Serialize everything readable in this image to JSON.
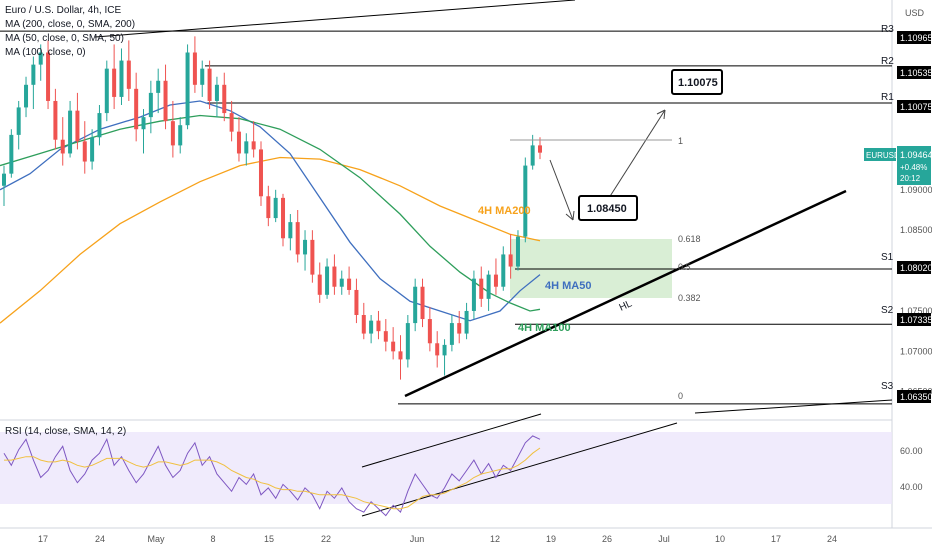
{
  "symbol_title": "Euro / U.S. Dollar, 4h, ICE",
  "indicators": [
    "MA (200, close, 0, SMA, 200)",
    "MA (50, close, 0, SMA, 50)",
    "MA (100, close, 0)"
  ],
  "rsi_legend": "RSI (14, close, SMA, 14, 2)",
  "currency_label": "USD",
  "ticker_badge": "EURUSD",
  "last_price": "1.09464",
  "change_pct": "+0.48%",
  "countdown": "20:12",
  "colors": {
    "up": "#26a69a",
    "down": "#ef5350",
    "ma200": "#f7a21b",
    "ma50": "#3f6fbf",
    "ma100": "#2e9e5b",
    "fib_box": "#cfeacb",
    "rsi_band": "#ece6fb",
    "rsi_line": "#7e57c2",
    "rsi_ma": "#f0c040",
    "price_badge": "#26a69a"
  },
  "chart_data": {
    "type": "candlestick",
    "title": "Euro / U.S. Dollar, 4h, ICE",
    "y_axis": {
      "unit": "USD",
      "range": [
        1.0615,
        1.1135
      ],
      "ticks": [
        "1.09000",
        "1.08500",
        "1.07500",
        "1.07000",
        "1.06500"
      ]
    },
    "x_axis": {
      "ticks": [
        "17",
        "24",
        "May",
        "8",
        "15",
        "22",
        "Jun",
        "12",
        "19",
        "26",
        "Jul",
        "10",
        "17",
        "24"
      ]
    },
    "levels": [
      {
        "name": "R3",
        "value": 1.10965
      },
      {
        "name": "R2",
        "value": 1.10535
      },
      {
        "name": "R1",
        "value": 1.10075
      },
      {
        "name": "S1",
        "value": 1.0802
      },
      {
        "name": "S2",
        "value": 1.07335
      },
      {
        "name": "S3",
        "value": 1.0635
      }
    ],
    "level_labels": [
      "1.10965",
      "1.10535",
      "1.10075",
      "1.08020",
      "1.07335",
      "1.06350"
    ],
    "fibonacci": [
      {
        "label": "1",
        "value": 1.0965
      },
      {
        "label": "0.618",
        "value": 1.0835
      },
      {
        "label": "0.5",
        "value": 1.0798
      },
      {
        "label": "0.382",
        "value": 1.0758
      },
      {
        "label": "0",
        "value": 1.0635
      }
    ],
    "targets": [
      "1.10075",
      "1.08450"
    ],
    "annotations": [
      "4H MA200",
      "4H MA50",
      "4H MA100",
      "HL"
    ],
    "series": [
      {
        "name": "4H MA200",
        "points": [
          [
            0,
            1.0735
          ],
          [
            40,
            1.0775
          ],
          [
            80,
            1.082
          ],
          [
            120,
            1.0858
          ],
          [
            160,
            1.0885
          ],
          [
            200,
            1.091
          ],
          [
            240,
            1.093
          ],
          [
            280,
            1.094
          ],
          [
            320,
            1.0938
          ],
          [
            360,
            1.0925
          ],
          [
            400,
            1.0905
          ],
          [
            440,
            1.088
          ],
          [
            480,
            1.086
          ],
          [
            510,
            1.0845
          ],
          [
            540,
            1.0837
          ]
        ]
      },
      {
        "name": "4H MA50",
        "points": [
          [
            0,
            1.09
          ],
          [
            30,
            1.092
          ],
          [
            60,
            1.095
          ],
          [
            100,
            1.0975
          ],
          [
            140,
            1.099
          ],
          [
            170,
            1.1005
          ],
          [
            200,
            1.101
          ],
          [
            230,
            1.0998
          ],
          [
            260,
            1.0978
          ],
          [
            290,
            1.0945
          ],
          [
            320,
            1.089
          ],
          [
            350,
            1.0835
          ],
          [
            380,
            1.079
          ],
          [
            410,
            1.0762
          ],
          [
            440,
            1.075
          ],
          [
            470,
            1.0738
          ],
          [
            500,
            1.075
          ],
          [
            520,
            1.0775
          ],
          [
            540,
            1.0795
          ]
        ]
      },
      {
        "name": "4H MA100",
        "points": [
          [
            0,
            1.093
          ],
          [
            40,
            1.0945
          ],
          [
            80,
            1.096
          ],
          [
            120,
            1.0975
          ],
          [
            160,
            1.0985
          ],
          [
            200,
            1.0992
          ],
          [
            240,
            1.0988
          ],
          [
            280,
            1.0975
          ],
          [
            320,
            1.095
          ],
          [
            360,
            1.0915
          ],
          [
            400,
            1.087
          ],
          [
            430,
            1.083
          ],
          [
            460,
            1.0798
          ],
          [
            490,
            1.0772
          ],
          [
            510,
            1.076
          ],
          [
            530,
            1.075
          ],
          [
            540,
            1.0752
          ]
        ]
      }
    ],
    "ohlc": [
      [
        1.0905,
        1.093,
        1.088,
        1.092
      ],
      [
        1.092,
        1.0975,
        1.0915,
        1.0968
      ],
      [
        1.0968,
        1.101,
        1.095,
        1.1002
      ],
      [
        1.1002,
        1.104,
        1.099,
        1.103
      ],
      [
        1.103,
        1.1065,
        1.1,
        1.1055
      ],
      [
        1.1055,
        1.108,
        1.1035,
        1.107
      ],
      [
        1.107,
        1.1085,
        1.1,
        1.101
      ],
      [
        1.101,
        1.1025,
        1.095,
        1.0962
      ],
      [
        1.0962,
        1.099,
        1.093,
        1.0945
      ],
      [
        1.0945,
        1.101,
        1.094,
        1.0998
      ],
      [
        1.0998,
        1.102,
        1.095,
        1.096
      ],
      [
        1.096,
        1.0985,
        1.092,
        1.0935
      ],
      [
        1.0935,
        1.0975,
        1.0925,
        1.0965
      ],
      [
        1.0965,
        1.1005,
        1.0955,
        1.0995
      ],
      [
        1.0995,
        1.106,
        1.0985,
        1.105
      ],
      [
        1.105,
        1.108,
        1.1,
        1.1015
      ],
      [
        1.1015,
        1.1075,
        1.1005,
        1.106
      ],
      [
        1.106,
        1.1085,
        1.101,
        1.1025
      ],
      [
        1.1025,
        1.1045,
        1.096,
        1.0975
      ],
      [
        1.0975,
        1.1,
        1.0945,
        1.099
      ],
      [
        1.099,
        1.1035,
        1.097,
        1.102
      ],
      [
        1.102,
        1.105,
        1.0995,
        1.1035
      ],
      [
        1.1035,
        1.1055,
        1.0975,
        1.0985
      ],
      [
        1.0985,
        1.101,
        1.094,
        1.0955
      ],
      [
        1.0955,
        1.099,
        1.0945,
        1.098
      ],
      [
        1.098,
        1.108,
        1.0975,
        1.107
      ],
      [
        1.107,
        1.109,
        1.102,
        1.103
      ],
      [
        1.103,
        1.106,
        1.1015,
        1.105
      ],
      [
        1.105,
        1.106,
        1.1,
        1.101
      ],
      [
        1.101,
        1.104,
        1.099,
        1.103
      ],
      [
        1.103,
        1.1045,
        1.0985,
        1.0995
      ],
      [
        1.0995,
        1.101,
        1.096,
        1.0972
      ],
      [
        1.0972,
        1.099,
        1.0935,
        1.0945
      ],
      [
        1.0945,
        1.097,
        1.093,
        1.096
      ],
      [
        1.096,
        1.0985,
        1.094,
        1.095
      ],
      [
        1.095,
        1.096,
        1.088,
        1.0892
      ],
      [
        1.0892,
        1.0905,
        1.0855,
        1.0865
      ],
      [
        1.0865,
        1.09,
        1.086,
        1.089
      ],
      [
        1.089,
        1.0895,
        1.083,
        1.084
      ],
      [
        1.084,
        1.087,
        1.0825,
        1.086
      ],
      [
        1.086,
        1.0875,
        1.081,
        1.082
      ],
      [
        1.082,
        1.085,
        1.08,
        1.0838
      ],
      [
        1.0838,
        1.085,
        1.0785,
        1.0795
      ],
      [
        1.0795,
        1.081,
        1.076,
        1.077
      ],
      [
        1.077,
        1.0815,
        1.0765,
        1.0805
      ],
      [
        1.0805,
        1.082,
        1.077,
        1.078
      ],
      [
        1.078,
        1.08,
        1.077,
        1.079
      ],
      [
        1.079,
        1.0805,
        1.077,
        1.0776
      ],
      [
        1.0776,
        1.079,
        1.0735,
        1.0745
      ],
      [
        1.0745,
        1.076,
        1.0715,
        1.0722
      ],
      [
        1.0722,
        1.0745,
        1.071,
        1.0738
      ],
      [
        1.0738,
        1.075,
        1.0715,
        1.0725
      ],
      [
        1.0725,
        1.074,
        1.07,
        1.0712
      ],
      [
        1.0712,
        1.073,
        1.069,
        1.07
      ],
      [
        1.07,
        1.072,
        1.0665,
        1.069
      ],
      [
        1.069,
        1.0745,
        1.068,
        1.0735
      ],
      [
        1.0735,
        1.079,
        1.0725,
        1.078
      ],
      [
        1.078,
        1.079,
        1.073,
        1.074
      ],
      [
        1.074,
        1.0755,
        1.07,
        1.071
      ],
      [
        1.071,
        1.0725,
        1.068,
        1.0695
      ],
      [
        1.0695,
        1.0715,
        1.067,
        1.0708
      ],
      [
        1.0708,
        1.0745,
        1.07,
        1.0735
      ],
      [
        1.0735,
        1.075,
        1.071,
        1.0722
      ],
      [
        1.0722,
        1.076,
        1.0715,
        1.075
      ],
      [
        1.075,
        1.08,
        1.074,
        1.079
      ],
      [
        1.079,
        1.0805,
        1.0755,
        1.0765
      ],
      [
        1.0765,
        1.08,
        1.075,
        1.0795
      ],
      [
        1.0795,
        1.0815,
        1.077,
        1.078
      ],
      [
        1.078,
        1.083,
        1.0775,
        1.082
      ],
      [
        1.082,
        1.0845,
        1.079,
        1.0805
      ],
      [
        1.0805,
        1.085,
        1.08,
        1.0842
      ],
      [
        1.0842,
        1.094,
        1.0835,
        1.093
      ],
      [
        1.093,
        1.0968,
        1.0925,
        1.0955
      ],
      [
        1.0955,
        1.0965,
        1.0938,
        1.0946
      ]
    ]
  },
  "rsi": {
    "range": [
      20,
      80
    ],
    "ticks": [
      "60.00",
      "40.00"
    ],
    "band": [
      30,
      70
    ],
    "values": [
      62,
      55,
      64,
      70,
      58,
      48,
      52,
      60,
      66,
      52,
      45,
      50,
      58,
      62,
      70,
      55,
      60,
      52,
      45,
      50,
      58,
      66,
      55,
      48,
      52,
      62,
      68,
      55,
      60,
      50,
      45,
      40,
      48,
      44,
      50,
      38,
      42,
      36,
      44,
      40,
      35,
      42,
      38,
      30,
      40,
      36,
      42,
      34,
      30,
      28,
      34,
      30,
      26,
      32,
      28,
      40,
      50,
      44,
      38,
      36,
      42,
      50,
      46,
      52,
      58,
      50,
      56,
      48,
      55,
      52,
      60,
      68,
      72,
      70
    ],
    "ma": [
      58,
      58,
      59,
      60,
      60,
      58,
      57,
      57,
      58,
      57,
      55,
      54,
      55,
      57,
      59,
      59,
      59,
      57,
      55,
      54,
      55,
      57,
      57,
      56,
      55,
      56,
      58,
      58,
      58,
      57,
      55,
      52,
      50,
      48,
      47,
      45,
      44,
      42,
      41,
      41,
      40,
      40,
      39,
      38,
      38,
      38,
      38,
      37,
      36,
      34,
      33,
      32,
      31,
      30,
      30,
      31,
      34,
      37,
      38,
      38,
      39,
      41,
      43,
      45,
      48,
      50,
      51,
      52,
      53,
      53,
      55,
      58,
      62,
      65
    ]
  }
}
